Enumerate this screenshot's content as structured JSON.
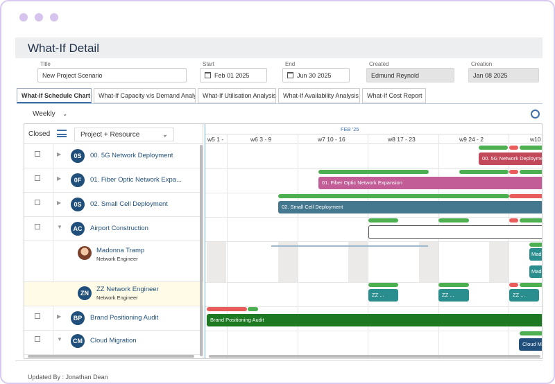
{
  "page": {
    "title": "What-If Detail"
  },
  "fields": {
    "title": {
      "label": "Title",
      "value": "New Project Scenario"
    },
    "start": {
      "label": "Start Date",
      "value": "Feb 01 2025"
    },
    "end": {
      "label": "End Date",
      "value": "Jun 30 2025"
    },
    "created_by": {
      "label": "Created By",
      "value": "Edmund Reynold"
    },
    "creation_date": {
      "label": "Creation Date",
      "value": "Jan 08 2025"
    }
  },
  "tabs": [
    "What-If Schedule Chart",
    "What-If Capacity v/s Demand Analy",
    "What-If Utilisation Analysis",
    "What-If Availability Analysis",
    "What-If Cost Report"
  ],
  "view": {
    "period": "Weekly"
  },
  "grid": {
    "closed_label": "Closed",
    "group_by": "Project + Resource",
    "month": "FEB '25",
    "weeks": [
      "w5 1 -",
      "w6 3 - 9",
      "w7 10 - 16",
      "w8 17 - 23",
      "w9 24 - 2",
      "w10"
    ]
  },
  "rows": [
    {
      "badge": "0S",
      "name": "00. 5G Network Deployment",
      "bar": "00. 5G Network Deployme"
    },
    {
      "badge": "0F",
      "name": "01. Fiber Optic Network Expa...",
      "bar": "01. Fiber Optic Network Expansion"
    },
    {
      "badge": "0S",
      "name": "02. Small Cell Deployment",
      "bar": "02. Small Cell Deployment"
    },
    {
      "badge": "AC",
      "name": "Airport Construction"
    },
    {
      "name": "Madonna Tramp",
      "role": "Network Engineer",
      "bars": [
        "Mad...",
        "Mad..."
      ]
    },
    {
      "badge": "ZN",
      "name": "ZZ Network Engineer",
      "role": "Network Engineer",
      "bars": [
        "ZZ ...",
        "ZZ ...",
        "ZZ ..."
      ]
    },
    {
      "badge": "BP",
      "name": "Brand Positioning Audit",
      "bar": "Brand Positioning Audit"
    },
    {
      "badge": "CM",
      "name": "Cloud Migration",
      "bar": "Cloud Mig"
    }
  ],
  "footer": {
    "updated_by": "Updated By :  Jonathan Dean"
  },
  "colors": {
    "accent": "#3e6fa8",
    "badge": "#1f4f7a",
    "capacity_ok": "#4caf50",
    "capacity_over": "#e85c5c"
  },
  "icons": [
    "calendar-icon",
    "sort-icon",
    "gear-icon",
    "chevron-down-icon",
    "expand-arrow-icon",
    "collapse-arrow-icon"
  ]
}
